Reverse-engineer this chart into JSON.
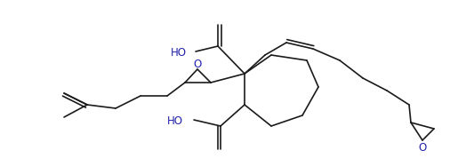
{
  "background_color": "#ffffff",
  "line_color": "#1a1a1a",
  "line_width": 1.2,
  "text_color": "#2222aa",
  "figsize": [
    5.15,
    1.87
  ],
  "dpi": 100,
  "xlim": [
    0,
    515
  ],
  "ylim": [
    0,
    187
  ]
}
